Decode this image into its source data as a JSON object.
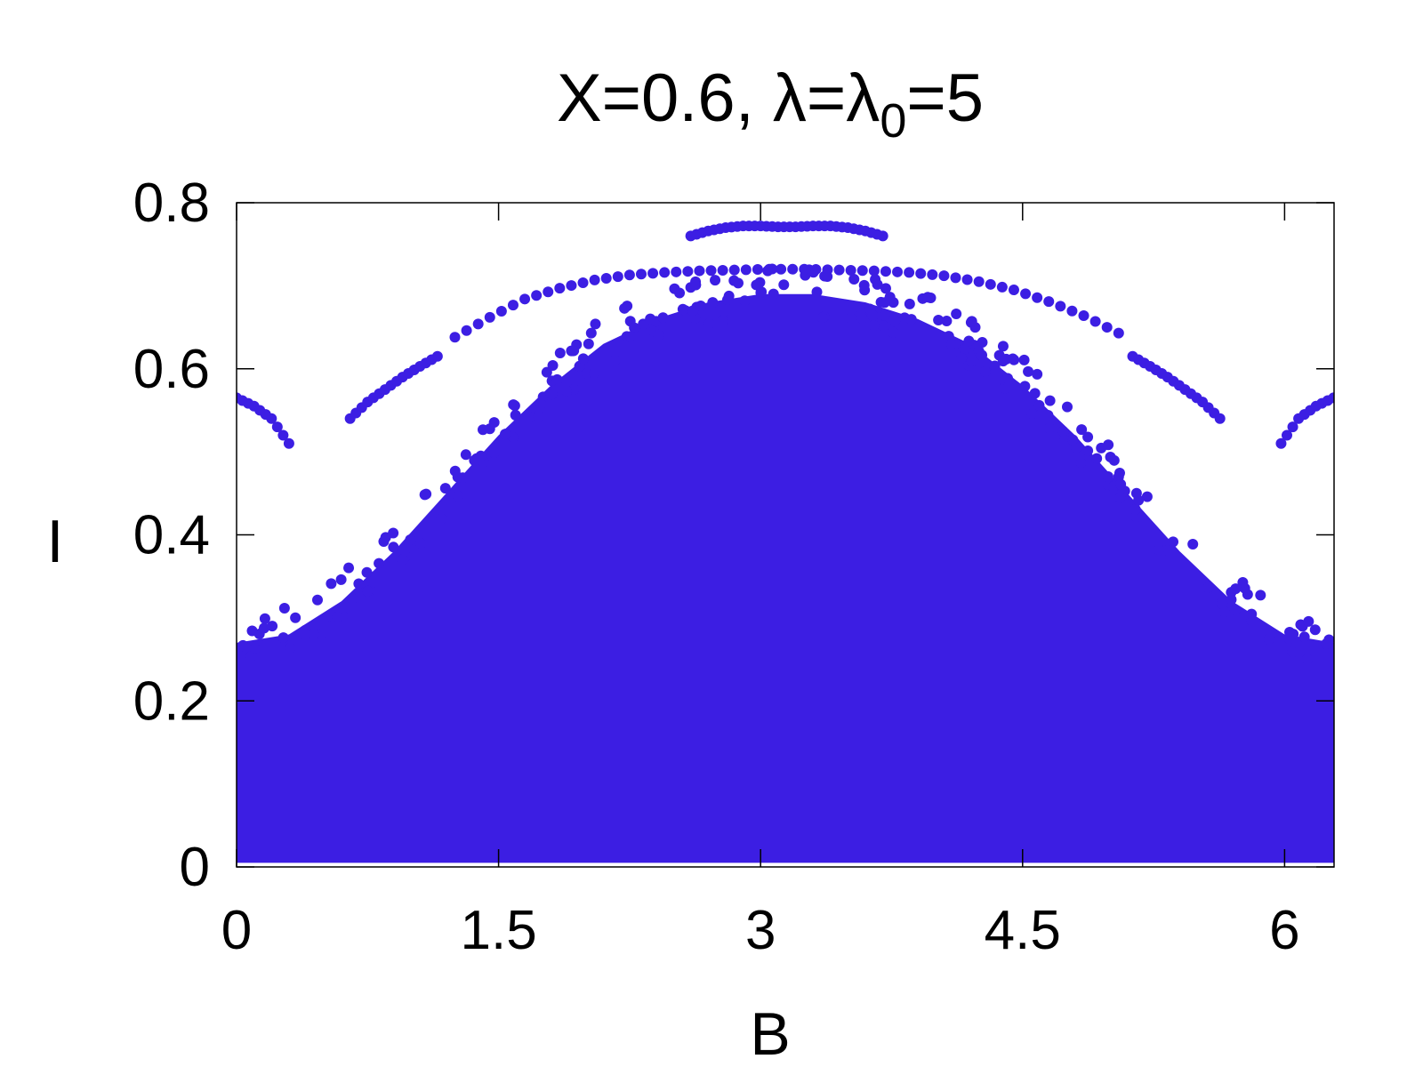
{
  "chart_data": {
    "type": "scatter",
    "title": {
      "prefix": "X=0.6, λ=λ",
      "subscript": "0",
      "suffix": "=5"
    },
    "xlabel": "B",
    "ylabel": "I",
    "xlim": [
      0,
      6.2832
    ],
    "ylim": [
      0,
      0.8
    ],
    "xticks": [
      {
        "value": 0,
        "label": "0"
      },
      {
        "value": 1.5,
        "label": "1.5"
      },
      {
        "value": 3,
        "label": "3"
      },
      {
        "value": 4.5,
        "label": "4.5"
      },
      {
        "value": 6,
        "label": "6"
      }
    ],
    "yticks": [
      {
        "value": 0,
        "label": "0"
      },
      {
        "value": 0.2,
        "label": "0.2"
      },
      {
        "value": 0.4,
        "label": "0.4"
      },
      {
        "value": 0.6,
        "label": "0.6"
      },
      {
        "value": 0.8,
        "label": "0.8"
      }
    ],
    "grid": false,
    "legend": "none",
    "color": "#3c1ee3",
    "series": [
      {
        "description": "dense filled region of points under an arched envelope",
        "envelope_x": [
          0,
          0.3,
          0.6,
          0.9,
          1.2,
          1.5,
          1.8,
          2.1,
          2.4,
          2.7,
          3.0,
          3.3,
          3.6,
          3.9,
          4.2,
          4.5,
          4.8,
          5.1,
          5.4,
          5.7,
          6.0,
          6.2832
        ],
        "envelope_y": [
          0.27,
          0.28,
          0.32,
          0.38,
          0.45,
          0.52,
          0.58,
          0.63,
          0.66,
          0.68,
          0.69,
          0.69,
          0.68,
          0.66,
          0.63,
          0.58,
          0.52,
          0.45,
          0.38,
          0.32,
          0.28,
          0.27
        ]
      },
      {
        "description": "outer arc branch",
        "x": [
          1.25,
          1.45,
          1.65,
          1.85,
          2.05,
          2.25,
          2.45,
          2.65,
          2.85,
          3.05,
          3.25,
          3.45,
          3.65,
          3.85,
          4.05,
          4.25,
          4.45,
          4.65,
          4.85,
          5.05
        ],
        "y": [
          0.638,
          0.662,
          0.684,
          0.697,
          0.707,
          0.713,
          0.716,
          0.718,
          0.719,
          0.72,
          0.72,
          0.719,
          0.718,
          0.716,
          0.712,
          0.705,
          0.695,
          0.681,
          0.664,
          0.643
        ]
      },
      {
        "description": "top cap branch",
        "x": [
          2.6,
          2.7,
          2.8,
          2.9,
          3.0,
          3.1,
          3.2,
          3.3,
          3.4,
          3.5,
          3.6,
          3.7
        ],
        "y": [
          0.76,
          0.766,
          0.77,
          0.772,
          0.772,
          0.771,
          0.771,
          0.772,
          0.772,
          0.77,
          0.766,
          0.76
        ]
      },
      {
        "description": "left edge branch",
        "x": [
          0.0,
          0.1,
          0.2,
          0.3
        ],
        "y": [
          0.565,
          0.555,
          0.54,
          0.51
        ]
      },
      {
        "description": "right edge branch",
        "x": [
          5.98,
          6.08,
          6.18,
          6.28
        ],
        "y": [
          0.51,
          0.54,
          0.555,
          0.565
        ]
      },
      {
        "description": "left mid branch",
        "x": [
          0.65,
          0.75,
          0.85,
          0.95,
          1.05,
          1.15
        ],
        "y": [
          0.54,
          0.56,
          0.575,
          0.59,
          0.603,
          0.615
        ]
      },
      {
        "description": "right mid branch",
        "x": [
          5.13,
          5.23,
          5.33,
          5.43,
          5.53,
          5.63
        ],
        "y": [
          0.615,
          0.603,
          0.59,
          0.575,
          0.56,
          0.54
        ]
      }
    ]
  }
}
